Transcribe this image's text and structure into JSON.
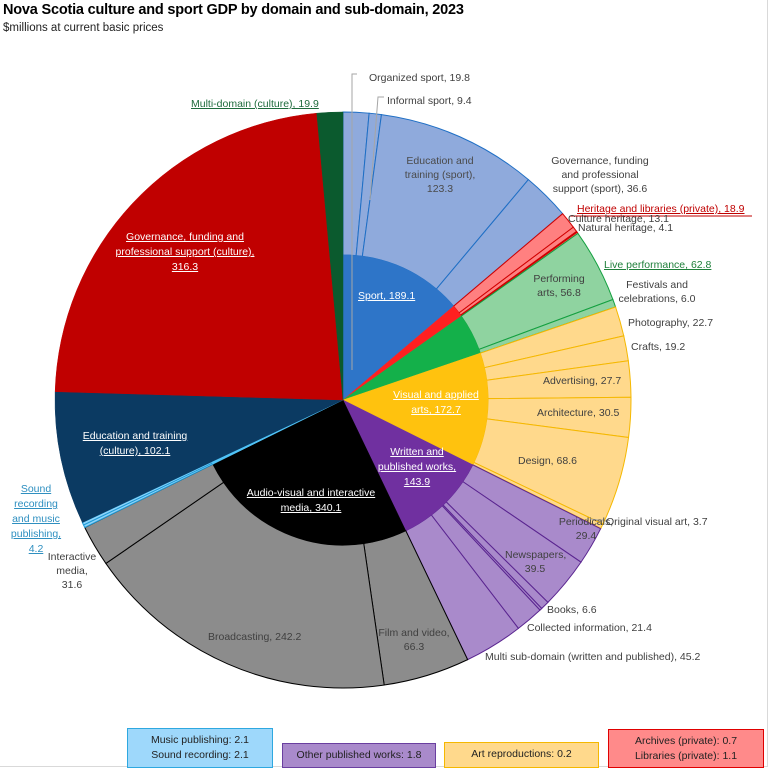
{
  "header": {
    "title": "Nova Scotia culture and sport GDP by domain and sub-domain, 2023",
    "subtitle": "$millions at current basic prices"
  },
  "chart_data": {
    "type": "sunburst",
    "title": "Nova Scotia culture and sport GDP by domain and sub-domain, 2023",
    "subtitle": "$millions at current basic prices",
    "units": "$millions",
    "domains": [
      {
        "name": "Sport",
        "value": 189.1,
        "color": "#2E75C8",
        "sub_color": "#8FAADC",
        "line": "#1F6FC5",
        "label": "Sport, 189.1",
        "subs": [
          {
            "name": "Organized sport",
            "value": 19.8,
            "label": "Organized sport, 19.8"
          },
          {
            "name": "Informal sport",
            "value": 9.4,
            "label": "Informal sport, 9.4"
          },
          {
            "name": "Education and training (sport)",
            "value": 123.3,
            "label": "Education and training (sport), 123.3"
          },
          {
            "name": "Governance, funding and professional support (sport)",
            "value": 36.6,
            "label": "Governance, funding and professional support (sport), 36.6"
          }
        ]
      },
      {
        "name": "Heritage and libraries (private)",
        "value": 18.9,
        "color": "#FF2020",
        "sub_color": "#FF8080",
        "line": "#D00000",
        "label": "Heritage and libraries (private), 18.9",
        "subs": [
          {
            "name": "Culture heritage",
            "value": 13.1,
            "label": "Culture heritage, 13.1"
          },
          {
            "name": "Natural heritage",
            "value": 4.1,
            "label": "Natural heritage, 4.1"
          },
          {
            "name": "Archives (private)",
            "value": 0.7,
            "label": "Archives (private): 0.7"
          },
          {
            "name": "Libraries (private)",
            "value": 1.1,
            "label": "Libraries (private): 1.1"
          }
        ]
      },
      {
        "name": "Live performance",
        "value": 62.8,
        "color": "#14B04A",
        "sub_color": "#8FD3A0",
        "line": "#14A040",
        "label": "Live performance, 62.8",
        "subs": [
          {
            "name": "Performing arts",
            "value": 56.8,
            "label": "Performing arts, 56.8"
          },
          {
            "name": "Festivals and celebrations",
            "value": 6.0,
            "label": "Festivals and celebrations, 6.0"
          }
        ]
      },
      {
        "name": "Visual and applied arts",
        "value": 172.7,
        "color": "#FFC20E",
        "sub_color": "#FFD98C",
        "line": "#F5B800",
        "label": "Visual and applied arts, 172.7",
        "subs": [
          {
            "name": "Photography",
            "value": 22.7,
            "label": "Photography, 22.7"
          },
          {
            "name": "Crafts",
            "value": 19.2,
            "label": "Crafts, 19.2"
          },
          {
            "name": "Advertising",
            "value": 27.7,
            "label": "Advertising, 27.7"
          },
          {
            "name": "Architecture",
            "value": 30.5,
            "label": "Architecture, 30.5"
          },
          {
            "name": "Design",
            "value": 68.6,
            "label": "Design, 68.6"
          },
          {
            "name": "Original visual art",
            "value": 3.7,
            "label": "Original visual art, 3.7"
          },
          {
            "name": "Art reproductions",
            "value": 0.2,
            "label": "Art reproductions: 0.2"
          }
        ]
      },
      {
        "name": "Written and published works",
        "value": 143.9,
        "color": "#7030A0",
        "sub_color": "#A98ACB",
        "line": "#5A2590",
        "label": "Written and published works, 143.9",
        "subs": [
          {
            "name": "Periodicals",
            "value": 29.4,
            "label": "Periodicals, 29.4"
          },
          {
            "name": "Newspapers",
            "value": 39.5,
            "label": "Newspapers, 39.5"
          },
          {
            "name": "Books",
            "value": 6.6,
            "label": "Books, 6.6"
          },
          {
            "name": "Other published works",
            "value": 1.8,
            "label": "Other published works: 1.8"
          },
          {
            "name": "Collected information",
            "value": 21.4,
            "label": "Collected information, 21.4"
          },
          {
            "name": "Multi sub-domain (written and published)",
            "value": 45.2,
            "label": "Multi sub-domain (written and published), 45.2"
          }
        ]
      },
      {
        "name": "Audio-visual and interactive media",
        "value": 340.1,
        "color": "#000000",
        "sub_color": "#8C8C8C",
        "line": "#000000",
        "label": "Audio-visual and interactive media, 340.1",
        "subs": [
          {
            "name": "Film and video",
            "value": 66.3,
            "label": "Film and video, 66.3"
          },
          {
            "name": "Broadcasting",
            "value": 242.2,
            "label": "Broadcasting, 242.2"
          },
          {
            "name": "Interactive media",
            "value": 31.6,
            "label": "Interactive media, 31.6"
          }
        ]
      },
      {
        "name": "Sound recording and music publishing",
        "value": 4.2,
        "color": "#4FC3F7",
        "sub_color": "#8FD4FA",
        "line": "#1E9BD7",
        "label": "Sound recording and music publishing, 4.2",
        "subs": [
          {
            "name": "Music publishing",
            "value": 2.1,
            "label": "Music publishing: 2.1"
          },
          {
            "name": "Sound recording",
            "value": 2.1,
            "label": "Sound recording: 2.1"
          }
        ]
      },
      {
        "name": "Education and training (culture)",
        "value": 102.1,
        "color": "#0B3A62",
        "sub_color": null,
        "line": "#0B3A62",
        "label": "Education and training (culture), 102.1",
        "subs": []
      },
      {
        "name": "Governance, funding and professional support (culture)",
        "value": 316.3,
        "color": "#C00000",
        "sub_color": null,
        "line": "#C00000",
        "label": "Governance, funding and professional support (culture), 316.3",
        "subs": []
      },
      {
        "name": "Multi-domain (culture)",
        "value": 19.9,
        "color": "#0B5A2E",
        "sub_color": null,
        "line": "#0B5A2E",
        "label": "Multi-domain (culture), 19.9",
        "subs": []
      }
    ]
  },
  "labels": {
    "organized_sport": "Organized sport, 19.8",
    "informal_sport": "Informal sport, 9.4",
    "edu_sport": [
      "Education and",
      "training (sport),",
      "123.3"
    ],
    "gov_sport": [
      "Governance, funding",
      "and professional",
      "support (sport), 36.6"
    ],
    "heritage": "Heritage and libraries (private), 18.9",
    "culture_heritage": "Culture heritage, 13.1",
    "natural_heritage": "Natural heritage, 4.1",
    "live_perf": "Live performance, 62.8",
    "performing": [
      "Performing",
      "arts, 56.8"
    ],
    "festivals": [
      "Festivals and",
      "celebrations, 6.0"
    ],
    "photography": "Photography, 22.7",
    "crafts": "Crafts, 19.2",
    "advertising": "Advertising, 27.7",
    "architecture": "Architecture, 30.5",
    "design": "Design, 68.6",
    "original_visual": "Original visual art, 3.7",
    "periodicals": [
      "Periodicals,",
      "29.4"
    ],
    "newspapers": [
      "Newspapers,",
      "39.5"
    ],
    "books": "Books, 6.6",
    "collected": "Collected information, 21.4",
    "multi_sub": "Multi sub-domain (written and published), 45.2",
    "film": [
      "Film and video,",
      "66.3"
    ],
    "broadcasting": "Broadcasting, 242.2",
    "interactive": [
      "Interactive",
      "media,",
      "31.6"
    ],
    "sound": [
      "Sound",
      "recording",
      "and music",
      "publishing,",
      "4.2"
    ],
    "edu_culture": [
      "Education and training",
      "(culture), 102.1"
    ],
    "gov_culture": [
      "Governance, funding and",
      "professional support (culture),",
      "316.3"
    ],
    "multi_domain": "Multi-domain (culture), 19.9",
    "sport": "Sport, 189.1",
    "visual": [
      "Visual and applied",
      "arts, 172.7"
    ],
    "written": [
      "Written and",
      "published works,",
      "143.9"
    ],
    "audio_visual": [
      "Audio-visual and interactive",
      "media, 340.1"
    ]
  },
  "legend_boxes": [
    {
      "lines": [
        "Music publishing: 2.1",
        "Sound recording: 2.1"
      ],
      "fill": "#9ED8FB",
      "border": "#2EA8E0"
    },
    {
      "lines": [
        "Other published works: 1.8"
      ],
      "fill": "#A98ACB",
      "border": "#6A3FA0"
    },
    {
      "lines": [
        "Art reproductions: 0.2"
      ],
      "fill": "#FFD98C",
      "border": "#F5B800"
    },
    {
      "lines": [
        "Archives (private): 0.7",
        "Libraries (private): 1.1"
      ],
      "fill": "#FF8A8A",
      "border": "#E00000"
    }
  ]
}
